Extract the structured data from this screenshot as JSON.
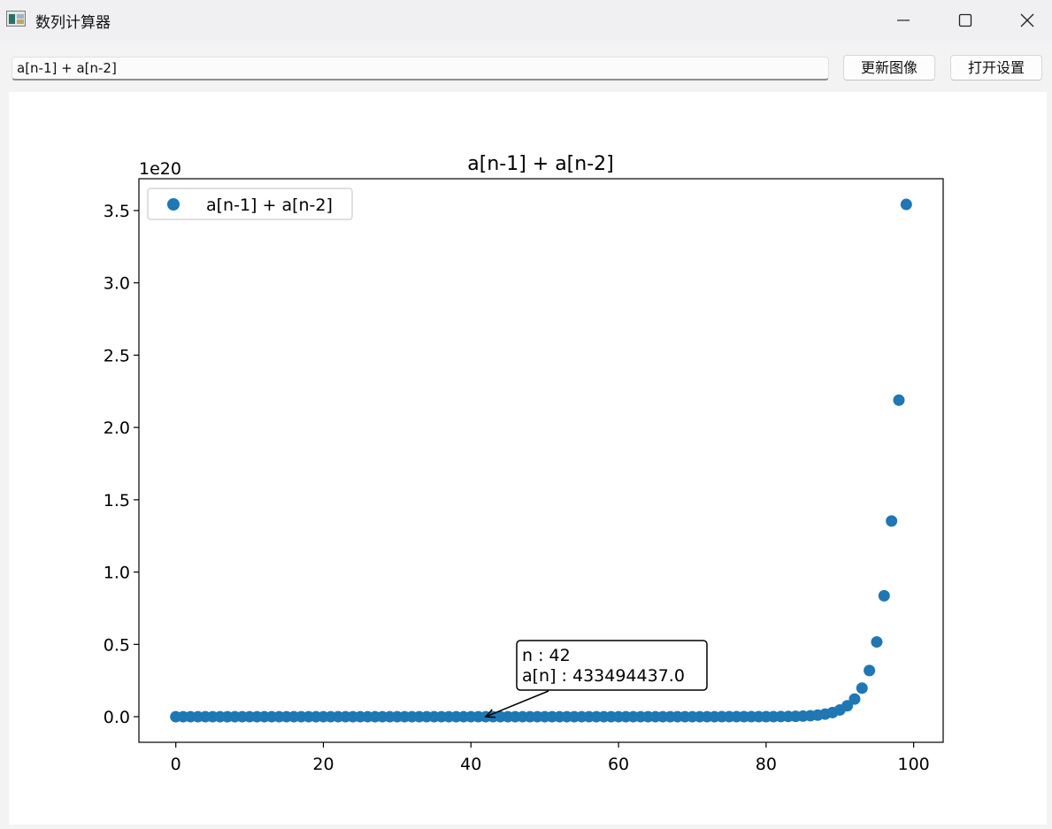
{
  "window": {
    "title": "数列计算器",
    "icon": "app-window-icon"
  },
  "toolbar": {
    "expression_value": "a[n-1] + a[n-2]",
    "update_label": "更新图像",
    "settings_label": "打开设置"
  },
  "chart_data": {
    "type": "scatter",
    "title": "a[n-1] + a[n-2]",
    "xlabel": "",
    "ylabel": "",
    "y_scale_label": "1e20",
    "xlim": [
      -5,
      104
    ],
    "ylim": [
      -0.177,
      3.72
    ],
    "x_ticks": [
      0,
      20,
      40,
      60,
      80,
      100
    ],
    "y_ticks": [
      0.0,
      0.5,
      1.0,
      1.5,
      2.0,
      2.5,
      3.0,
      3.5
    ],
    "x_tick_labels": [
      "0",
      "20",
      "40",
      "60",
      "80",
      "100"
    ],
    "y_tick_labels": [
      "0.0",
      "0.5",
      "1.0",
      "1.5",
      "2.0",
      "2.5",
      "3.0",
      "3.5"
    ],
    "legend": {
      "label": "a[n-1] + a[n-2]",
      "placement": "top-left"
    },
    "series_color": "#1f77b4",
    "series": [
      {
        "name": "a[n-1] + a[n-2]",
        "rule": "fibonacci",
        "start": [
          1,
          1
        ],
        "n_from": 0,
        "n_to": 99,
        "unit_scale": 1e+20
      }
    ],
    "annotation": {
      "n": 42,
      "line1": "n : 42",
      "line2": "a[n] : 433494437.0"
    }
  }
}
